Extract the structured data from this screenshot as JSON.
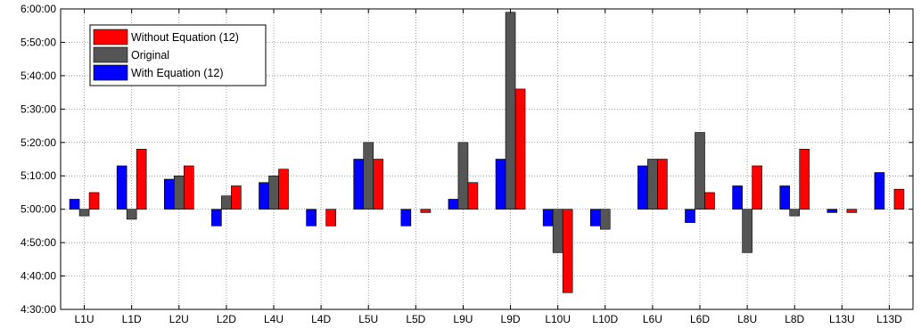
{
  "chart_data": {
    "type": "bar",
    "title": "",
    "xlabel": "",
    "ylabel": "",
    "categories": [
      "L1U",
      "L1D",
      "L2U",
      "L2D",
      "L4U",
      "L4D",
      "L5U",
      "L5D",
      "L9U",
      "L9D",
      "L10U",
      "L10D",
      "L6U",
      "L6D",
      "L8U",
      "L8D",
      "L13U",
      "L13D"
    ],
    "y_ticks": [
      "4:30:00",
      "4:40:00",
      "4:50:00",
      "5:00:00",
      "5:10:00",
      "5:20:00",
      "5:30:00",
      "5:40:00",
      "5:50:00",
      "6:00:00"
    ],
    "ylim": [
      "4:30:00",
      "6:00:00"
    ],
    "baseline": "5:00:00",
    "grid": true,
    "legend_position": "top-left",
    "series": [
      {
        "name": "With Equation (12)",
        "color": "#0000ff",
        "values": [
          "5:03:00",
          "5:13:00",
          "5:09:00",
          "4:55:00",
          "5:08:00",
          "4:55:00",
          "5:15:00",
          "4:55:00",
          "5:03:00",
          "5:15:00",
          "4:55:00",
          "4:55:00",
          "5:13:00",
          "4:56:00",
          "5:07:00",
          "5:07:00",
          "4:59:00",
          "5:11:00"
        ]
      },
      {
        "name": "Original",
        "color": "#555555",
        "values": [
          "4:58:00",
          "4:57:00",
          "5:10:00",
          "5:04:00",
          "5:10:00",
          null,
          "5:20:00",
          null,
          "5:20:00",
          "5:59:00",
          "4:47:00",
          "4:54:00",
          "5:15:00",
          "5:23:00",
          "4:47:00",
          "4:58:00",
          null,
          null
        ]
      },
      {
        "name": "Without Equation (12)",
        "color": "#ff0000",
        "values": [
          "5:05:00",
          "5:18:00",
          "5:13:00",
          "5:07:00",
          "5:12:00",
          "4:55:00",
          "5:15:00",
          "4:59:00",
          "5:08:00",
          "5:36:00",
          "4:35:00",
          null,
          "5:15:00",
          "5:05:00",
          "5:13:00",
          "5:18:00",
          "4:59:00",
          "5:06:00"
        ]
      }
    ],
    "legend": [
      {
        "name": "Without Equation (12)",
        "color": "#ff0000"
      },
      {
        "name": "Original",
        "color": "#555555"
      },
      {
        "name": "With Equation (12)",
        "color": "#0000ff"
      }
    ]
  }
}
